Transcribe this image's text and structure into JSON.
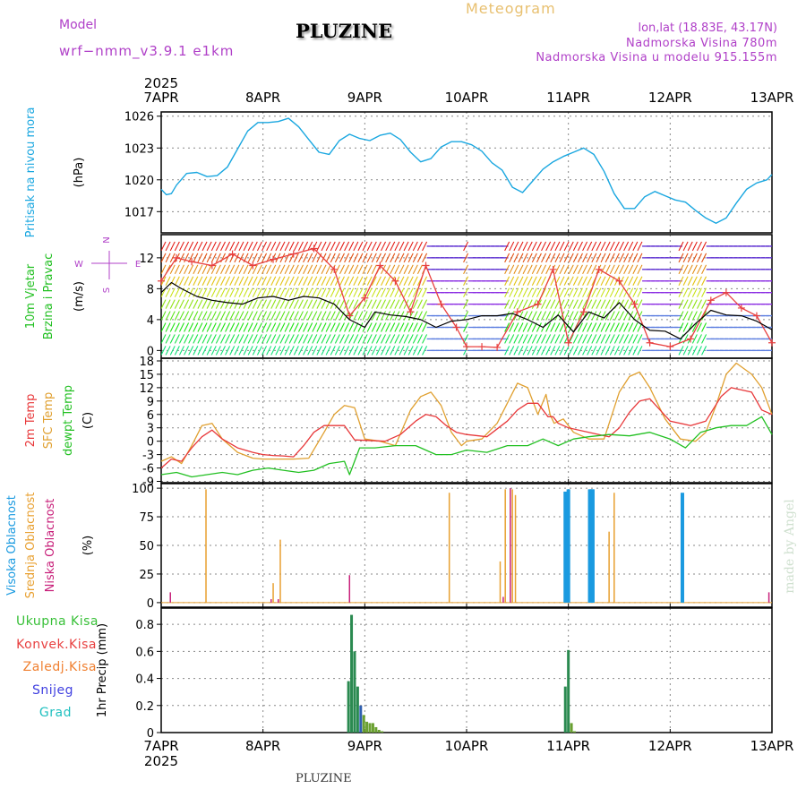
{
  "header": {
    "model_label": "Model",
    "model_name": "wrf−nmm_v3.9.1  e1km",
    "title": "PLUZINE",
    "meteogram_label": "Meteogram",
    "lonlat": "lon,lat (18.83E, 43.17N)",
    "elevation": "Nadmorska Visina 780m",
    "model_elevation": "Nadmorska Visina u modelu 915.155m",
    "watermark": "made by Angel",
    "footer_title": "PLUZINE"
  },
  "colors": {
    "pressure": "#1aa7e0",
    "temp2m": "#e8383a",
    "sfc_temp": "#e0a030",
    "dewpoint": "#22c022",
    "high_cloud": "#1a9ae0",
    "mid_cloud": "#e8a030",
    "low_cloud": "#c8207a",
    "label_purple": "#b040c8",
    "meteogram_label": "#e8c070",
    "precip_total": "#38c038",
    "precip_conv": "#e84040",
    "precip_frozen": "#f08030",
    "precip_snow": "#4040e0",
    "precip_hail": "#20c0c0"
  },
  "time_axis": {
    "year": "2025",
    "ticks": [
      "7APR",
      "8APR",
      "9APR",
      "10APR",
      "11APR",
      "12APR",
      "13APR"
    ]
  },
  "chart_data": [
    {
      "id": "pressure",
      "type": "line",
      "ylabel_lines": [
        "Pritisak na nivou mora",
        "(hPa)"
      ],
      "ylim": [
        1015,
        1026.4
      ],
      "yticks": [
        1017,
        1020,
        1023,
        1026
      ],
      "grid": true,
      "series": [
        {
          "values_x_days": [
            0,
            0.05,
            0.1,
            0.15,
            0.25,
            0.35,
            0.45,
            0.55,
            0.65,
            0.75,
            0.85,
            0.95,
            1.05,
            1.15,
            1.25,
            1.35,
            1.45,
            1.55,
            1.65,
            1.75,
            1.85,
            1.95,
            2.05,
            2.15,
            2.25,
            2.35,
            2.45,
            2.55,
            2.65,
            2.75,
            2.85,
            2.95,
            3.05,
            3.15,
            3.25,
            3.35,
            3.45,
            3.55,
            3.65,
            3.75,
            3.85,
            3.95,
            4.05,
            4.15,
            4.25,
            4.35,
            4.45,
            4.55,
            4.65,
            4.75,
            4.85,
            4.95,
            5.05,
            5.15,
            5.25,
            5.35,
            5.45,
            5.55,
            5.65,
            5.75,
            5.85,
            5.95,
            6.0
          ],
          "values": [
            1019.1,
            1018.6,
            1018.7,
            1019.5,
            1020.6,
            1020.7,
            1020.3,
            1020.4,
            1021.2,
            1022.9,
            1024.6,
            1025.4,
            1025.4,
            1025.5,
            1025.8,
            1025.0,
            1023.8,
            1022.6,
            1022.4,
            1023.7,
            1024.3,
            1023.9,
            1023.7,
            1024.2,
            1024.4,
            1023.8,
            1022.6,
            1021.7,
            1022.0,
            1023.1,
            1023.6,
            1023.6,
            1023.3,
            1022.7,
            1021.6,
            1020.9,
            1019.3,
            1018.8,
            1019.9,
            1021.0,
            1021.7,
            1022.2,
            1022.6,
            1023.0,
            1022.4,
            1020.8,
            1018.7,
            1017.3,
            1017.3,
            1018.4,
            1018.9,
            1018.5,
            1018.1,
            1017.9,
            1017.1,
            1016.4,
            1015.9,
            1016.4,
            1017.8,
            1019.1,
            1019.7,
            1020.0,
            1020.5
          ]
        }
      ]
    },
    {
      "id": "wind",
      "type": "line",
      "ylabel_lines": [
        "10m Vjetar",
        "Brzina i Pravac",
        "(m/s)"
      ],
      "compass_labels": {
        "n": "N",
        "e": "E",
        "w": "W",
        "s": "S"
      },
      "ylim": [
        -1,
        15
      ],
      "yticks": [
        0,
        4,
        8,
        12
      ],
      "grid": true,
      "series": [
        {
          "name_color": "#000000",
          "values_x_days": [
            0,
            0.1,
            0.2,
            0.35,
            0.5,
            0.65,
            0.8,
            0.95,
            1.1,
            1.25,
            1.4,
            1.55,
            1.7,
            1.85,
            2.0,
            2.1,
            2.25,
            2.4,
            2.55,
            2.7,
            2.85,
            3.0,
            3.15,
            3.3,
            3.45,
            3.6,
            3.75,
            3.9,
            4.05,
            4.2,
            4.35,
            4.5,
            4.65,
            4.8,
            4.95,
            5.1,
            5.25,
            5.4,
            5.55,
            5.7,
            5.85,
            6.0
          ],
          "values": [
            7.5,
            8.8,
            8.0,
            7.0,
            6.5,
            6.2,
            6.0,
            6.8,
            7.0,
            6.5,
            7.0,
            6.8,
            6.0,
            4.0,
            3.0,
            5.0,
            4.6,
            4.4,
            4.0,
            3.0,
            3.8,
            4.0,
            4.5,
            4.5,
            4.8,
            4.0,
            3.0,
            4.6,
            2.4,
            5.0,
            4.2,
            6.2,
            4.0,
            2.6,
            2.5,
            1.5,
            3.5,
            5.2,
            4.6,
            4.5,
            3.8,
            2.7
          ]
        },
        {
          "name_color": "#e84040",
          "values_x_days": [
            0,
            0.15,
            0.3,
            0.5,
            0.7,
            0.9,
            1.1,
            1.3,
            1.5,
            1.7,
            1.85,
            2.0,
            2.15,
            2.3,
            2.45,
            2.6,
            2.75,
            2.9,
            3.0,
            3.15,
            3.3,
            3.5,
            3.7,
            3.85,
            4.0,
            4.15,
            4.3,
            4.5,
            4.65,
            4.8,
            5.0,
            5.2,
            5.4,
            5.55,
            5.7,
            5.85,
            6.0
          ],
          "values": [
            9.0,
            12.0,
            11.5,
            11.0,
            12.5,
            11.0,
            11.8,
            12.5,
            13.2,
            10.5,
            4.5,
            6.8,
            11.0,
            9.0,
            5.0,
            11.0,
            6.0,
            3.0,
            0.5,
            0.5,
            0.4,
            5.0,
            6.0,
            10.5,
            1.0,
            5.0,
            10.5,
            9.0,
            6.0,
            1.0,
            0.5,
            1.5,
            6.5,
            7.5,
            5.5,
            4.5,
            1.0
          ]
        }
      ]
    },
    {
      "id": "temperature",
      "type": "line",
      "ylabel_lines": [
        "2m Temp",
        "SFC Temp",
        "dewpt Temp",
        "(C)"
      ],
      "ylim": [
        -9.3,
        18.6
      ],
      "yticks": [
        -9,
        -6,
        -3,
        0,
        3,
        6,
        9,
        12,
        15,
        18
      ],
      "grid": true,
      "series": [
        {
          "key": "temp2m",
          "values_x_days": [
            0,
            0.1,
            0.2,
            0.3,
            0.4,
            0.5,
            0.6,
            0.75,
            0.9,
            1.0,
            1.1,
            1.2,
            1.3,
            1.4,
            1.5,
            1.6,
            1.8,
            1.9,
            2.0,
            2.2,
            2.35,
            2.5,
            2.6,
            2.7,
            2.8,
            2.9,
            3.0,
            3.2,
            3.4,
            3.5,
            3.6,
            3.7,
            3.8,
            3.85,
            3.9,
            4.0,
            4.2,
            4.4,
            4.5,
            4.6,
            4.7,
            4.8,
            5.0,
            5.2,
            5.35,
            5.5,
            5.6,
            5.8,
            5.9,
            6.0
          ],
          "values": [
            -6,
            -4,
            -4.5,
            -1.5,
            1,
            2.5,
            0.5,
            -1.5,
            -2.5,
            -3,
            -3.2,
            -3.3,
            -3.5,
            -1,
            2,
            3.5,
            3.5,
            0.3,
            0.2,
            0,
            1.5,
            4.5,
            6,
            5.5,
            3.5,
            2,
            1.5,
            1,
            4.5,
            7,
            8.5,
            8.5,
            5.5,
            5.5,
            4,
            3,
            2,
            1,
            3,
            6.5,
            9,
            9.5,
            4.5,
            3.5,
            4.5,
            10,
            12,
            11,
            7,
            6
          ]
        },
        {
          "key": "sfc_temp",
          "values_x_days": [
            0,
            0.1,
            0.2,
            0.3,
            0.4,
            0.5,
            0.6,
            0.75,
            0.9,
            1.0,
            1.15,
            1.3,
            1.45,
            1.6,
            1.7,
            1.8,
            1.9,
            2.0,
            2.15,
            2.3,
            2.45,
            2.55,
            2.65,
            2.75,
            2.85,
            2.95,
            3.0,
            3.15,
            3.3,
            3.5,
            3.6,
            3.7,
            3.78,
            3.82,
            3.86,
            3.95,
            4.05,
            4.2,
            4.35,
            4.5,
            4.6,
            4.7,
            4.8,
            4.95,
            5.1,
            5.25,
            5.35,
            5.45,
            5.55,
            5.65,
            5.8,
            5.9,
            6.0
          ],
          "values": [
            -4.5,
            -3.5,
            -5,
            -1,
            3.5,
            4,
            0.5,
            -2.5,
            -3.8,
            -4,
            -4,
            -4,
            -3.8,
            2,
            6,
            8,
            7.5,
            0.5,
            0,
            -1,
            7,
            10,
            11,
            8,
            2,
            -1,
            0,
            0.5,
            4,
            13,
            12,
            6,
            10.5,
            6,
            4,
            5,
            2,
            0.5,
            0.5,
            11,
            14.5,
            15.5,
            12,
            5,
            0.5,
            0,
            2,
            8,
            15,
            17.5,
            15,
            12,
            6
          ]
        },
        {
          "key": "dewpoint",
          "values_x_days": [
            0,
            0.15,
            0.3,
            0.45,
            0.6,
            0.75,
            0.9,
            1.05,
            1.2,
            1.35,
            1.5,
            1.65,
            1.8,
            1.85,
            1.95,
            2.1,
            2.3,
            2.5,
            2.7,
            2.85,
            3.0,
            3.2,
            3.4,
            3.6,
            3.75,
            3.9,
            4.05,
            4.2,
            4.4,
            4.6,
            4.8,
            5.0,
            5.15,
            5.3,
            5.45,
            5.6,
            5.75,
            5.9,
            6.0
          ],
          "values": [
            -7.5,
            -7,
            -8,
            -7.5,
            -7,
            -7.5,
            -6.5,
            -6,
            -6.5,
            -7,
            -6.5,
            -5,
            -4.5,
            -7.5,
            -1.5,
            -1.5,
            -1,
            -1,
            -3,
            -3,
            -2,
            -2.5,
            -1,
            -1,
            0.5,
            -1,
            0.5,
            1,
            1.5,
            1.2,
            2,
            0.5,
            -1.5,
            2,
            3,
            3.5,
            3.5,
            5.5,
            1.5
          ]
        }
      ]
    },
    {
      "id": "cloud",
      "type": "bar",
      "ylabel_lines": [
        "Visoka Oblacnost",
        "Srednja Oblacnost",
        "Niska Oblacnost",
        "(%)"
      ],
      "ylim": [
        -4,
        104
      ],
      "yticks": [
        0,
        25,
        50,
        75,
        100
      ],
      "grid": true,
      "series": [
        {
          "key": "high",
          "values_x_days": [
            3.97,
            4.0,
            4.21,
            4.22,
            4.23,
            4.24,
            5.12
          ],
          "values": [
            97,
            99,
            99,
            99,
            99,
            99,
            96
          ]
        },
        {
          "key": "mid",
          "values_x_days": [
            0.44,
            1.1,
            1.17,
            2.83,
            3.33,
            3.38,
            3.45,
            3.48,
            4.4,
            4.45
          ],
          "values": [
            99,
            17,
            55,
            96,
            36,
            99,
            99,
            94,
            62,
            96
          ]
        },
        {
          "key": "low",
          "values_x_days": [
            0.09,
            1.08,
            1.15,
            1.85,
            3.36,
            3.43,
            5.97
          ],
          "values": [
            9,
            3,
            3,
            24,
            5,
            100,
            9
          ]
        }
      ]
    },
    {
      "id": "precip",
      "type": "bar",
      "ylabel_lines": [
        "1hr Precip (mm)"
      ],
      "legend": [
        "Ukupna Kisa",
        "Konvek.Kisa",
        "Zaledj.Kisa",
        "Snijeg",
        "Grad"
      ],
      "ylim": [
        0,
        0.92
      ],
      "yticks": [
        0,
        0.2,
        0.4,
        0.6,
        0.8
      ],
      "grid": true,
      "series": [
        {
          "key": "total",
          "values_x_days": [
            1.84,
            1.87,
            1.9,
            1.93,
            1.96,
            1.99,
            2.02,
            2.05,
            2.08,
            2.11,
            2.14,
            2.17,
            3.97,
            4.0,
            4.03,
            4.06
          ],
          "values": [
            0.38,
            0.87,
            0.6,
            0.34,
            0.2,
            0.13,
            0.08,
            0.07,
            0.07,
            0.04,
            0.02,
            0.01,
            0.34,
            0.61,
            0.07,
            0.01
          ]
        }
      ]
    }
  ]
}
